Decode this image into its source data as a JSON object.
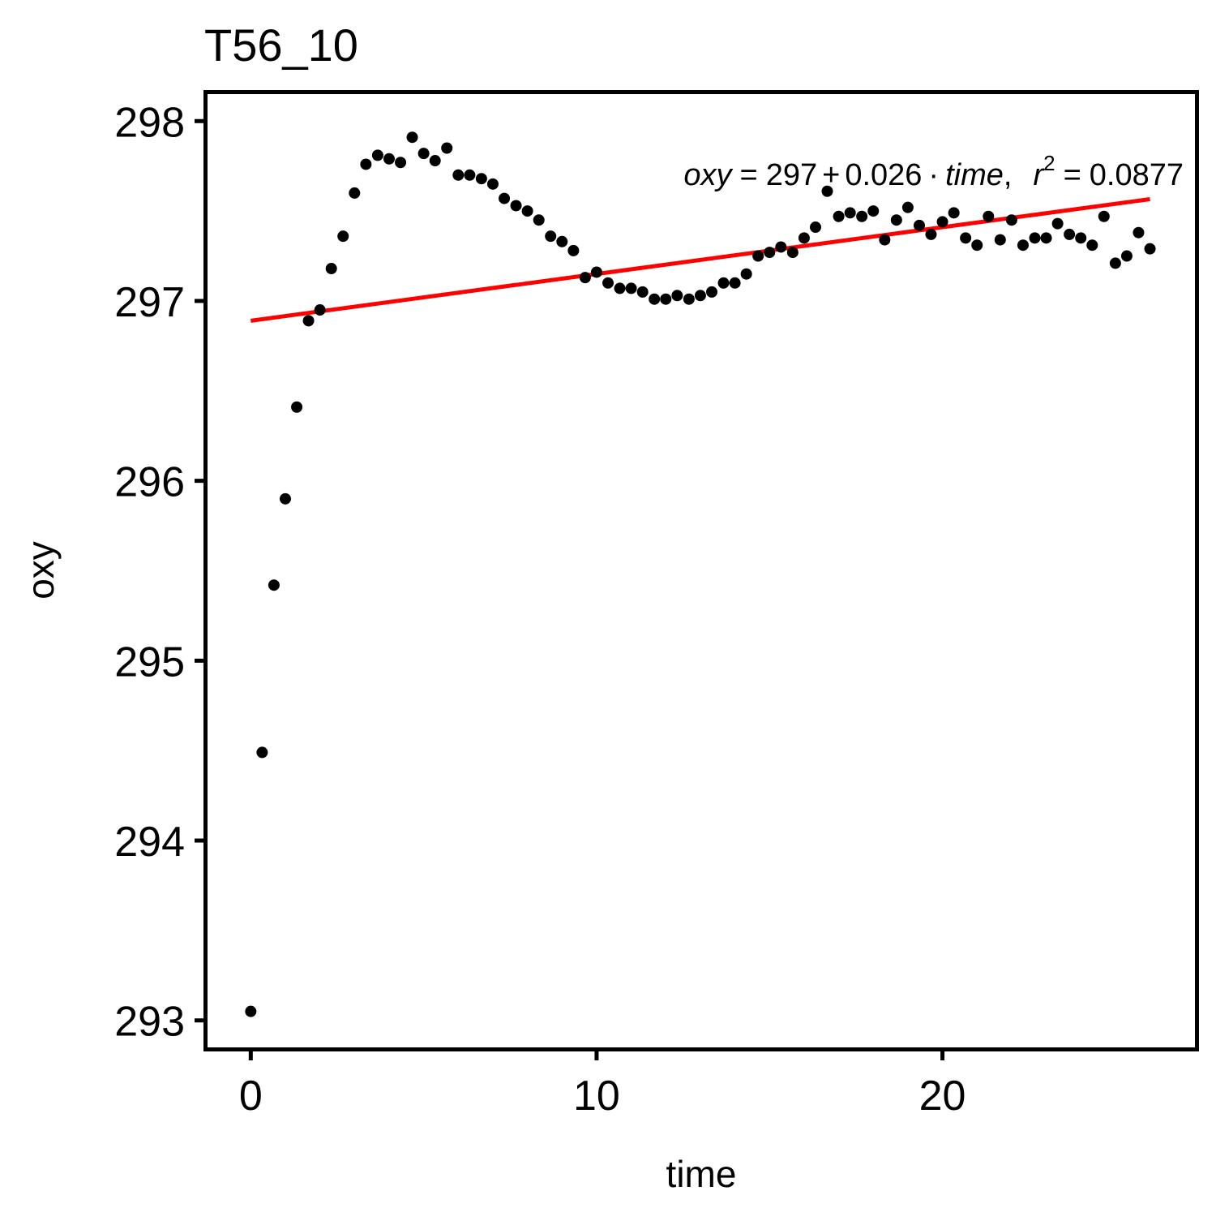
{
  "chart_data": {
    "type": "scatter",
    "title": "T56_10",
    "xlabel": "time",
    "ylabel": "oxy",
    "xlim": [
      -1.25,
      27.3
    ],
    "ylim": [
      292.85,
      298.15
    ],
    "x_ticks": [
      0,
      10,
      20
    ],
    "y_ticks": [
      293,
      294,
      295,
      296,
      297,
      298
    ],
    "grid": false,
    "legend": "none",
    "colors": {
      "points": "#000000",
      "fit_line": "#ff0000",
      "frame": "#000000"
    },
    "series": [
      {
        "x": [
          0.0,
          0.33,
          0.67,
          1.0,
          1.33,
          1.67,
          2.0,
          2.33,
          2.67,
          3.0,
          3.33,
          3.67,
          4.0,
          4.33,
          4.67,
          5.0,
          5.33,
          5.67,
          6.0,
          6.33,
          6.67,
          7.0,
          7.33,
          7.67,
          8.0,
          8.33,
          8.67,
          9.0,
          9.33,
          9.67,
          10.0,
          10.33,
          10.67,
          11.0,
          11.33,
          11.67,
          12.0,
          12.33,
          12.67,
          13.0,
          13.33,
          13.67,
          14.0,
          14.33,
          14.67,
          15.0,
          15.33,
          15.67,
          16.0,
          16.33,
          16.67,
          17.0,
          17.33,
          17.67,
          18.0,
          18.33,
          18.67,
          19.0,
          19.33,
          19.67,
          20.0,
          20.33,
          20.67,
          21.0,
          21.33,
          21.67,
          22.0,
          22.33,
          22.67,
          23.0,
          23.33,
          23.67,
          24.0,
          24.33,
          24.67,
          25.0,
          25.33,
          25.67,
          26.0
        ],
        "values": [
          293.05,
          294.49,
          295.42,
          295.9,
          296.41,
          296.89,
          296.95,
          297.18,
          297.36,
          297.6,
          297.76,
          297.81,
          297.79,
          297.77,
          297.91,
          297.82,
          297.78,
          297.85,
          297.7,
          297.7,
          297.68,
          297.65,
          297.57,
          297.53,
          297.5,
          297.45,
          297.36,
          297.33,
          297.28,
          297.13,
          297.16,
          297.1,
          297.07,
          297.07,
          297.05,
          297.01,
          297.01,
          297.03,
          297.01,
          297.03,
          297.05,
          297.1,
          297.1,
          297.15,
          297.25,
          297.27,
          297.3,
          297.27,
          297.35,
          297.41,
          297.61,
          297.47,
          297.49,
          297.47,
          297.5,
          297.34,
          297.45,
          297.52,
          297.42,
          297.37,
          297.44,
          297.49,
          297.35,
          297.31,
          297.47,
          297.34,
          297.45,
          297.31,
          297.35,
          297.35,
          297.43,
          297.37,
          297.35,
          297.31,
          297.47,
          297.21,
          297.25,
          297.38,
          297.29
        ]
      }
    ],
    "fit": {
      "intercept": 296.89,
      "slope": 0.026,
      "x_range": [
        0,
        26
      ]
    },
    "annotation": {
      "lhs": "oxy",
      "eq": "=",
      "intercept_text": "297",
      "plus": "+",
      "slope_text": "0.026",
      "dot": "·",
      "var": "time",
      "comma": ",",
      "r": "r",
      "sup": "2",
      "eq2": "=",
      "r2_text": "0.0877"
    }
  }
}
